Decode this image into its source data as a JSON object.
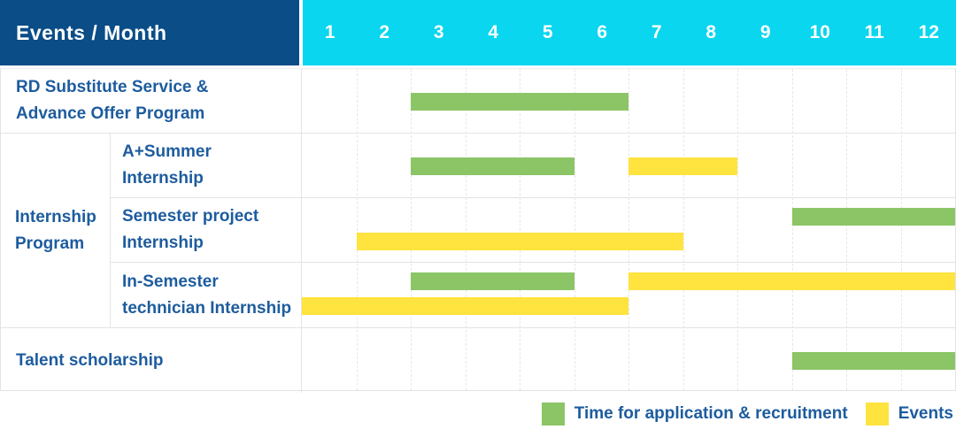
{
  "header": {
    "title": "Events / Month",
    "months": [
      "1",
      "2",
      "3",
      "4",
      "5",
      "6",
      "7",
      "8",
      "9",
      "10",
      "11",
      "12"
    ]
  },
  "colors": {
    "header_bg": "#0a4d87",
    "month_bar_bg": "#0ad6ef",
    "header_text": "#ffffff",
    "label_text": "#1d5c9e",
    "application_green": "#8bc566",
    "events_yellow": "#ffe33e",
    "grid_line": "#e7e7e7",
    "row_border": "#e3e3e3",
    "background": "#ffffff"
  },
  "chart_data": {
    "type": "bar",
    "subtype": "gantt",
    "orientation": "horizontal",
    "x_axis": {
      "label": "Month",
      "ticks": [
        "1",
        "2",
        "3",
        "4",
        "5",
        "6",
        "7",
        "8",
        "9",
        "10",
        "11",
        "12"
      ],
      "range": [
        1,
        13
      ]
    },
    "grid": true,
    "rows": [
      {
        "group": null,
        "label": "RD Substitute Service &\nAdvance Offer Program",
        "bars": [
          {
            "series": "Time for application & recruitment",
            "start_month": 3,
            "end_month": 7,
            "lane": 0
          }
        ]
      },
      {
        "group": "Internship\nProgram",
        "label": "A+Summer\nInternship",
        "bars": [
          {
            "series": "Time for application & recruitment",
            "start_month": 3,
            "end_month": 6,
            "lane": 0
          },
          {
            "series": "Events",
            "start_month": 7,
            "end_month": 9,
            "lane": 0
          }
        ]
      },
      {
        "group": "Internship\nProgram",
        "label": "Semester project\nInternship",
        "bars": [
          {
            "series": "Time for application & recruitment",
            "start_month": 10,
            "end_month": 13,
            "lane": 0
          },
          {
            "series": "Events",
            "start_month": 2,
            "end_month": 8,
            "lane": 1
          }
        ]
      },
      {
        "group": "Internship\nProgram",
        "label": "In-Semester\ntechnician Internship",
        "bars": [
          {
            "series": "Time for application & recruitment",
            "start_month": 3,
            "end_month": 6,
            "lane": 0
          },
          {
            "series": "Events",
            "start_month": 7,
            "end_month": 13,
            "lane": 0
          },
          {
            "series": "Events",
            "start_month": 1,
            "end_month": 7,
            "lane": 1
          }
        ]
      },
      {
        "group": null,
        "label": "Talent scholarship",
        "bars": [
          {
            "series": "Time for application & recruitment",
            "start_month": 10,
            "end_month": 13,
            "lane": 0
          }
        ]
      }
    ],
    "legend": [
      {
        "label": "Time for application & recruitment",
        "color": "#8bc566"
      },
      {
        "label": "Events",
        "color": "#ffe33e"
      }
    ],
    "legend_position": "bottom-right"
  }
}
